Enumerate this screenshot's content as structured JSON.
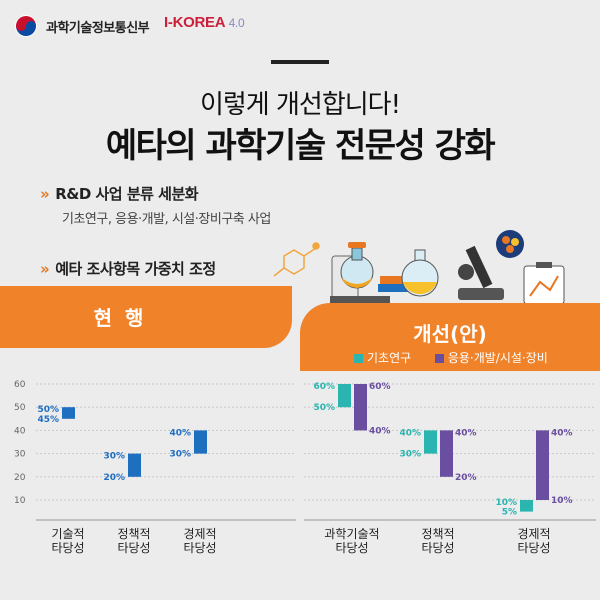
{
  "header": {
    "ministry": "과학기술정보통신부",
    "brand": "I-KOREA",
    "brand_version": "4.0"
  },
  "title": {
    "line1": "이렇게 개선합니다!",
    "line2": "예타의 과학기술 전문성 강화"
  },
  "bullets": [
    {
      "marker": "»",
      "text": "R&D 사업 분류 세분화",
      "sub": "기초연구, 응용·개발, 시설·장비구축 사업"
    },
    {
      "marker": "»",
      "text": "예타 조사항목 가중치 조정"
    }
  ],
  "sections": {
    "current": "현 행",
    "improved": "개선(안)"
  },
  "legend": [
    {
      "name": "기초연구",
      "color": "#2ab5b0"
    },
    {
      "name": "응용·개발/시설·장비",
      "color": "#6a4ea0"
    }
  ],
  "colors": {
    "orange": "#f0832a",
    "blue": "#1f6fc1",
    "teal": "#2ab5b0",
    "purple": "#6a4ea0"
  },
  "chart_data": [
    {
      "type": "bar",
      "title": "현 행",
      "categories": [
        "기술적\n타당성",
        "정책적\n타당성",
        "경제적\n타당성"
      ],
      "yticks": [
        10,
        20,
        30,
        40,
        50,
        60
      ],
      "ylim": [
        0,
        62
      ],
      "grid": true,
      "ranges": [
        {
          "low": 45,
          "high": 50,
          "low_label": "45%",
          "high_label": "50%"
        },
        {
          "low": 20,
          "high": 30,
          "low_label": "20%",
          "high_label": "30%"
        },
        {
          "low": 30,
          "high": 40,
          "low_label": "30%",
          "high_label": "40%"
        }
      ]
    },
    {
      "type": "bar",
      "title": "개선(안)",
      "categories": [
        "과학기술적\n타당성",
        "정책적\n타당성",
        "경제적\n타당성"
      ],
      "ylim": [
        0,
        62
      ],
      "grid": true,
      "series": [
        {
          "name": "기초연구",
          "ranges": [
            {
              "low": 50,
              "high": 60,
              "low_label": "50%",
              "high_label": "60%"
            },
            {
              "low": 30,
              "high": 40,
              "low_label": "30%",
              "high_label": "40%"
            },
            {
              "low": 5,
              "high": 10,
              "low_label": "5%",
              "high_label": "10%"
            }
          ]
        },
        {
          "name": "응용·개발/시설·장비",
          "ranges": [
            {
              "low": 40,
              "high": 60,
              "low_label": "40%",
              "high_label": "60%"
            },
            {
              "low": 20,
              "high": 40,
              "low_label": "20%",
              "high_label": "40%"
            },
            {
              "low": 10,
              "high": 40,
              "low_label": "10%",
              "high_label": "40%"
            }
          ]
        }
      ]
    }
  ]
}
